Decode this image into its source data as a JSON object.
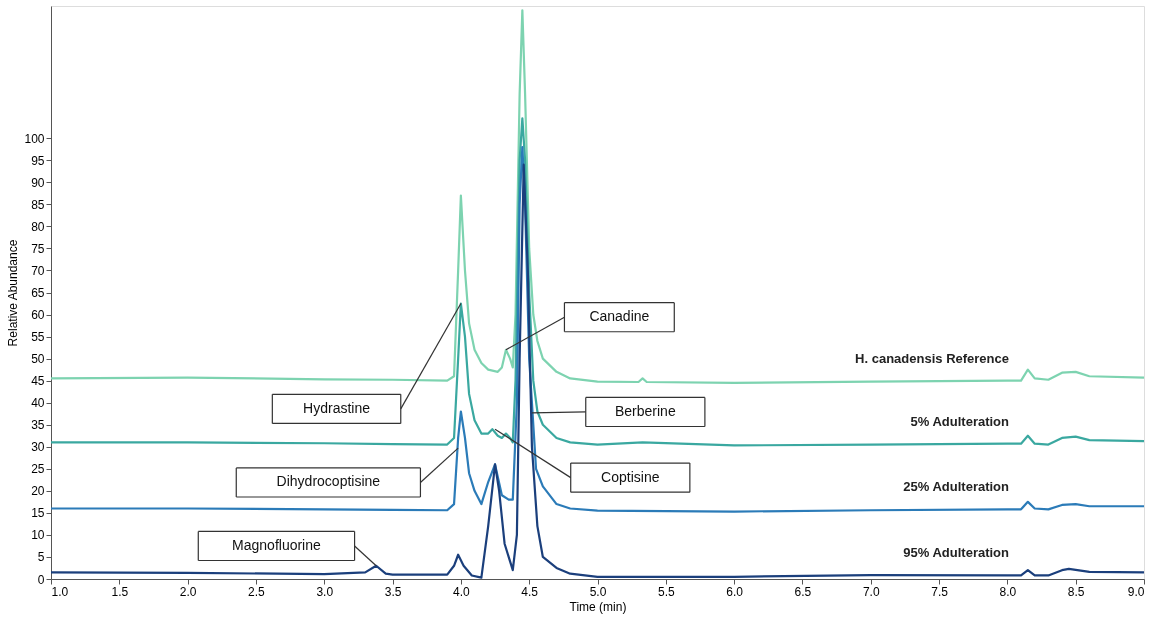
{
  "chart_data": {
    "type": "line",
    "xlabel": "Time (min)",
    "ylabel": "Relative Abundance",
    "xlim": [
      1.0,
      9.0
    ],
    "ylim": [
      0,
      130
    ],
    "xticks": [
      {
        "value": 1.0,
        "label": "1.0"
      },
      {
        "value": 1.5,
        "label": "1.5"
      },
      {
        "value": 2.0,
        "label": "2.0"
      },
      {
        "value": 2.5,
        "label": "2.5"
      },
      {
        "value": 3.0,
        "label": "3.0"
      },
      {
        "value": 3.5,
        "label": "3.5"
      },
      {
        "value": 4.0,
        "label": "4.0"
      },
      {
        "value": 4.5,
        "label": "4.5"
      },
      {
        "value": 5.0,
        "label": "5.0"
      },
      {
        "value": 5.5,
        "label": "5.5"
      },
      {
        "value": 6.0,
        "label": "6.0"
      },
      {
        "value": 6.5,
        "label": "6.5"
      },
      {
        "value": 7.0,
        "label": "7.0"
      },
      {
        "value": 7.5,
        "label": "7.5"
      },
      {
        "value": 8.0,
        "label": "8.0"
      },
      {
        "value": 8.5,
        "label": "8.5"
      },
      {
        "value": 9.0,
        "label": "9.0"
      }
    ],
    "yticks": [
      0,
      5,
      10,
      15,
      20,
      25,
      30,
      35,
      40,
      45,
      50,
      55,
      60,
      65,
      70,
      75,
      80,
      85,
      90,
      95,
      100
    ],
    "grid": false,
    "marker": "none",
    "line_style": "solid",
    "series": [
      {
        "name": "H. canadensis Reference",
        "color": "#7dd3b0",
        "x": [
          1.0,
          2.0,
          3.0,
          3.5,
          3.9,
          3.95,
          3.98,
          4.0,
          4.03,
          4.06,
          4.1,
          4.15,
          4.2,
          4.27,
          4.3,
          4.33,
          4.36,
          4.38,
          4.4,
          4.43,
          4.45,
          4.47,
          4.5,
          4.53,
          4.56,
          4.6,
          4.7,
          4.8,
          5.0,
          5.3,
          5.33,
          5.36,
          6.0,
          7.0,
          8.0,
          8.1,
          8.15,
          8.2,
          8.3,
          8.4,
          8.5,
          8.6,
          9.0
        ],
        "values": [
          45.5,
          45.7,
          45.3,
          45.2,
          45.0,
          46,
          70,
          87,
          70,
          58,
          52,
          49,
          47.5,
          47,
          48,
          52,
          50,
          48,
          60,
          110,
          129,
          110,
          75,
          60,
          54,
          50,
          47,
          45.5,
          44.8,
          44.7,
          45.5,
          44.7,
          44.5,
          44.8,
          45,
          45,
          47.5,
          45.5,
          45.2,
          46.8,
          47,
          46,
          45.7
        ]
      },
      {
        "name": "5% Adulteration",
        "color": "#3aa8a0",
        "x": [
          1.0,
          2.0,
          3.0,
          3.5,
          3.9,
          3.95,
          3.98,
          4.0,
          4.03,
          4.06,
          4.1,
          4.15,
          4.2,
          4.23,
          4.27,
          4.3,
          4.33,
          4.36,
          4.38,
          4.4,
          4.43,
          4.45,
          4.47,
          4.5,
          4.53,
          4.56,
          4.6,
          4.7,
          4.8,
          5.0,
          5.33,
          6.0,
          7.0,
          8.0,
          8.1,
          8.15,
          8.2,
          8.3,
          8.4,
          8.5,
          8.6,
          9.0
        ],
        "values": [
          31,
          31,
          30.8,
          30.6,
          30.5,
          32,
          50,
          62.5,
          55,
          42,
          36,
          33,
          33,
          34,
          32.5,
          32,
          33,
          32,
          31,
          45,
          95,
          104.5,
          95,
          65,
          45,
          38,
          35,
          32,
          31,
          30.5,
          31,
          30.3,
          30.5,
          30.7,
          30.7,
          32.5,
          30.7,
          30.5,
          32,
          32.3,
          31.5,
          31.3
        ]
      },
      {
        "name": "25% Adulteration",
        "color": "#2b7bb8",
        "x": [
          1.0,
          2.0,
          3.0,
          3.5,
          3.9,
          3.95,
          3.98,
          4.0,
          4.03,
          4.06,
          4.1,
          4.15,
          4.2,
          4.25,
          4.3,
          4.35,
          4.38,
          4.41,
          4.43,
          4.45,
          4.47,
          4.5,
          4.55,
          4.6,
          4.7,
          4.8,
          5.0,
          6.0,
          7.0,
          8.0,
          8.1,
          8.15,
          8.2,
          8.3,
          8.4,
          8.5,
          8.6,
          9.0
        ],
        "values": [
          16,
          16,
          15.8,
          15.7,
          15.6,
          17,
          32,
          38,
          32,
          24,
          20,
          17,
          22,
          26,
          19,
          18,
          18,
          40,
          85,
          98,
          85,
          50,
          25,
          21,
          17,
          16,
          15.5,
          15.3,
          15.6,
          15.8,
          15.8,
          17.5,
          16,
          15.8,
          16.8,
          17,
          16.5,
          16.5
        ]
      },
      {
        "name": "95% Adulteration",
        "color": "#1b3f7c",
        "x": [
          1.0,
          2.0,
          3.0,
          3.3,
          3.38,
          3.45,
          3.5,
          3.9,
          3.95,
          3.98,
          4.02,
          4.08,
          4.15,
          4.2,
          4.25,
          4.28,
          4.32,
          4.38,
          4.41,
          4.43,
          4.46,
          4.49,
          4.52,
          4.56,
          4.6,
          4.7,
          4.8,
          5.0,
          6.0,
          7.0,
          8.0,
          8.1,
          8.15,
          8.2,
          8.3,
          8.4,
          8.45,
          8.6,
          9.0
        ],
        "values": [
          1.5,
          1.4,
          1.1,
          1.5,
          3,
          1.2,
          1.0,
          1.0,
          3,
          5.5,
          3,
          0.8,
          0.3,
          12,
          26,
          20,
          8,
          2,
          10,
          50,
          94,
          70,
          30,
          12,
          5,
          2.5,
          1.2,
          0.5,
          0.5,
          0.9,
          0.8,
          0.8,
          2,
          0.8,
          0.8,
          2,
          2.3,
          1.6,
          1.5
        ]
      }
    ],
    "annotations": [
      "Canadine",
      "Berberine",
      "Hydrastine",
      "Coptisine",
      "Dihydrocoptisine",
      "Magnofluorine"
    ]
  }
}
